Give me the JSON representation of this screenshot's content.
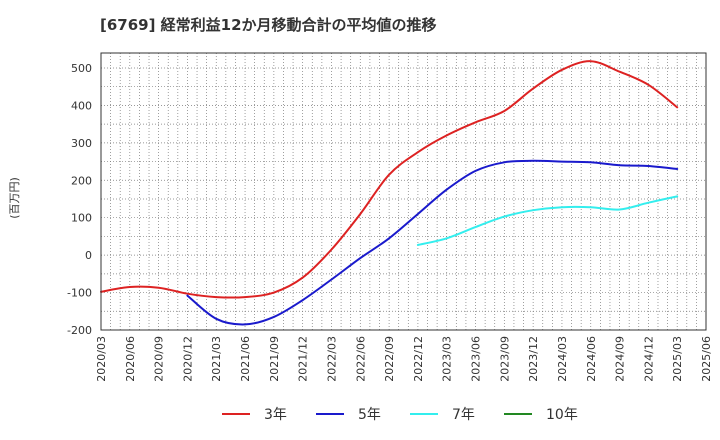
{
  "chart_data": {
    "type": "line",
    "title": "[6769]  経常利益12か月移動合計の平均値の推移",
    "ylabel": "(百万円)",
    "xlabel": "",
    "ylim": [
      -200,
      540
    ],
    "yticks": [
      -200,
      -100,
      0,
      100,
      200,
      300,
      400,
      500
    ],
    "grid": true,
    "legend_position": "bottom",
    "x_tick_labels": [
      "2020/03",
      "2020/06",
      "2020/09",
      "2020/12",
      "2021/03",
      "2021/06",
      "2021/09",
      "2021/12",
      "2022/03",
      "2022/06",
      "2022/09",
      "2022/12",
      "2023/03",
      "2023/06",
      "2023/09",
      "2023/12",
      "2024/03",
      "2024/06",
      "2024/09",
      "2024/12",
      "2025/03",
      "2025/06"
    ],
    "series": [
      {
        "name": "3年",
        "color": "#dd2222",
        "points": [
          [
            "2020/03",
            -98
          ],
          [
            "2020/06",
            -85
          ],
          [
            "2020/09",
            -87
          ],
          [
            "2020/12",
            -103
          ],
          [
            "2021/03",
            -112
          ],
          [
            "2021/06",
            -112
          ],
          [
            "2021/09",
            -100
          ],
          [
            "2021/12",
            -60
          ],
          [
            "2022/03",
            15
          ],
          [
            "2022/06",
            110
          ],
          [
            "2022/09",
            215
          ],
          [
            "2022/12",
            275
          ],
          [
            "2023/03",
            320
          ],
          [
            "2023/06",
            355
          ],
          [
            "2023/09",
            385
          ],
          [
            "2023/12",
            445
          ],
          [
            "2024/03",
            495
          ],
          [
            "2024/06",
            518
          ],
          [
            "2024/09",
            490
          ],
          [
            "2024/12",
            455
          ],
          [
            "2025/03",
            395
          ]
        ]
      },
      {
        "name": "5年",
        "color": "#1a1acc",
        "points": [
          [
            "2020/12",
            -108
          ],
          [
            "2021/03",
            -170
          ],
          [
            "2021/06",
            -185
          ],
          [
            "2021/09",
            -165
          ],
          [
            "2021/12",
            -120
          ],
          [
            "2022/03",
            -65
          ],
          [
            "2022/06",
            -8
          ],
          [
            "2022/09",
            45
          ],
          [
            "2022/12",
            110
          ],
          [
            "2023/03",
            175
          ],
          [
            "2023/06",
            225
          ],
          [
            "2023/09",
            248
          ],
          [
            "2023/12",
            252
          ],
          [
            "2024/03",
            250
          ],
          [
            "2024/06",
            248
          ],
          [
            "2024/09",
            240
          ],
          [
            "2024/12",
            238
          ],
          [
            "2025/03",
            230
          ]
        ]
      },
      {
        "name": "7年",
        "color": "#33eeee",
        "points": [
          [
            "2022/12",
            27
          ],
          [
            "2023/03",
            45
          ],
          [
            "2023/06",
            75
          ],
          [
            "2023/09",
            103
          ],
          [
            "2023/12",
            120
          ],
          [
            "2024/03",
            128
          ],
          [
            "2024/06",
            128
          ],
          [
            "2024/09",
            122
          ],
          [
            "2024/12",
            140
          ],
          [
            "2025/03",
            157
          ]
        ]
      },
      {
        "name": "10年",
        "color": "#228822",
        "points": []
      }
    ]
  }
}
